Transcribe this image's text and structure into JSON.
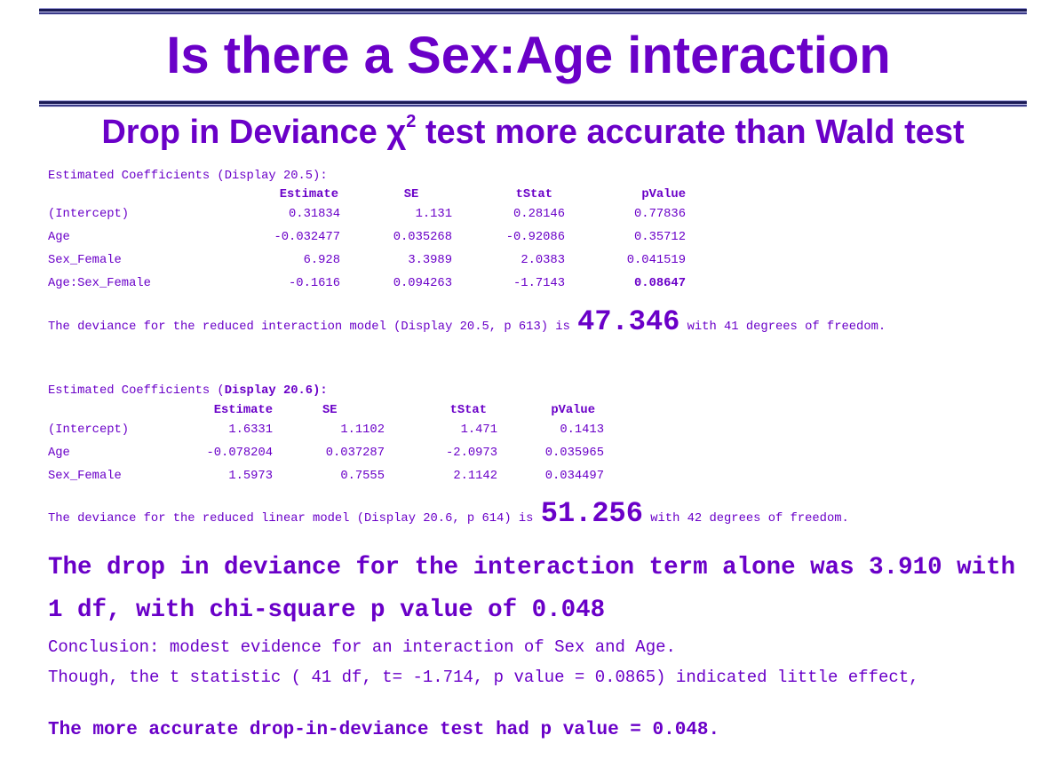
{
  "title": "Is there a Sex:Age interaction",
  "subtitle": {
    "before": "Drop in Deviance χ",
    "superscript": "2",
    "after": " test more accurate than Wald test"
  },
  "table1": {
    "caption": "Estimated Coefficients (Display 20.5):",
    "headers": [
      "",
      "Estimate",
      "SE",
      "tStat",
      "pValue"
    ],
    "rows": [
      [
        "(Intercept)",
        "0.31834",
        "1.131",
        "0.28146",
        "0.77836"
      ],
      [
        "Age",
        "-0.032477",
        "0.035268",
        "-0.92086",
        "0.35712"
      ],
      [
        "Sex_Female",
        "6.928",
        "3.3989",
        "2.0383",
        "0.041519"
      ],
      [
        "Age:Sex_Female",
        "-0.1616",
        "0.094263",
        "-1.7143",
        "0.08647"
      ]
    ]
  },
  "deviance1": {
    "before": "The deviance for the reduced interaction model (Display 20.5, p 613) is ",
    "value": "47.346",
    "after": " with 41 degrees of freedom."
  },
  "table2": {
    "caption_pre": "Estimated Coefficients (",
    "caption_bold": "Display 20.6):",
    "headers": [
      "",
      "Estimate",
      "SE",
      "tStat",
      "pValue"
    ],
    "rows": [
      [
        "(Intercept)",
        "1.6331",
        "1.1102",
        "1.471",
        "0.1413"
      ],
      [
        "Age",
        "-0.078204",
        "0.037287",
        "-2.0973",
        "0.035965"
      ],
      [
        "Sex_Female",
        "1.5973",
        "0.7555",
        "2.1142",
        "0.034497"
      ]
    ]
  },
  "deviance2": {
    "before": "The deviance for the reduced linear model (Display 20.6, p 614) is ",
    "value": "51.256",
    "after": " with 42 degrees of freedom."
  },
  "drop_statement": "The drop in deviance for the interaction term alone was 3.910 with 1 df, with chi-square p value of 0.048",
  "conclusion": "Conclusion: modest evidence for an interaction of Sex and Age.",
  "though": "Though, the t statistic ( 41 df, t= -1.714, p value = 0.0865) indicated little effect,",
  "final": "The more accurate drop-in-deviance test had p value = 0.048."
}
